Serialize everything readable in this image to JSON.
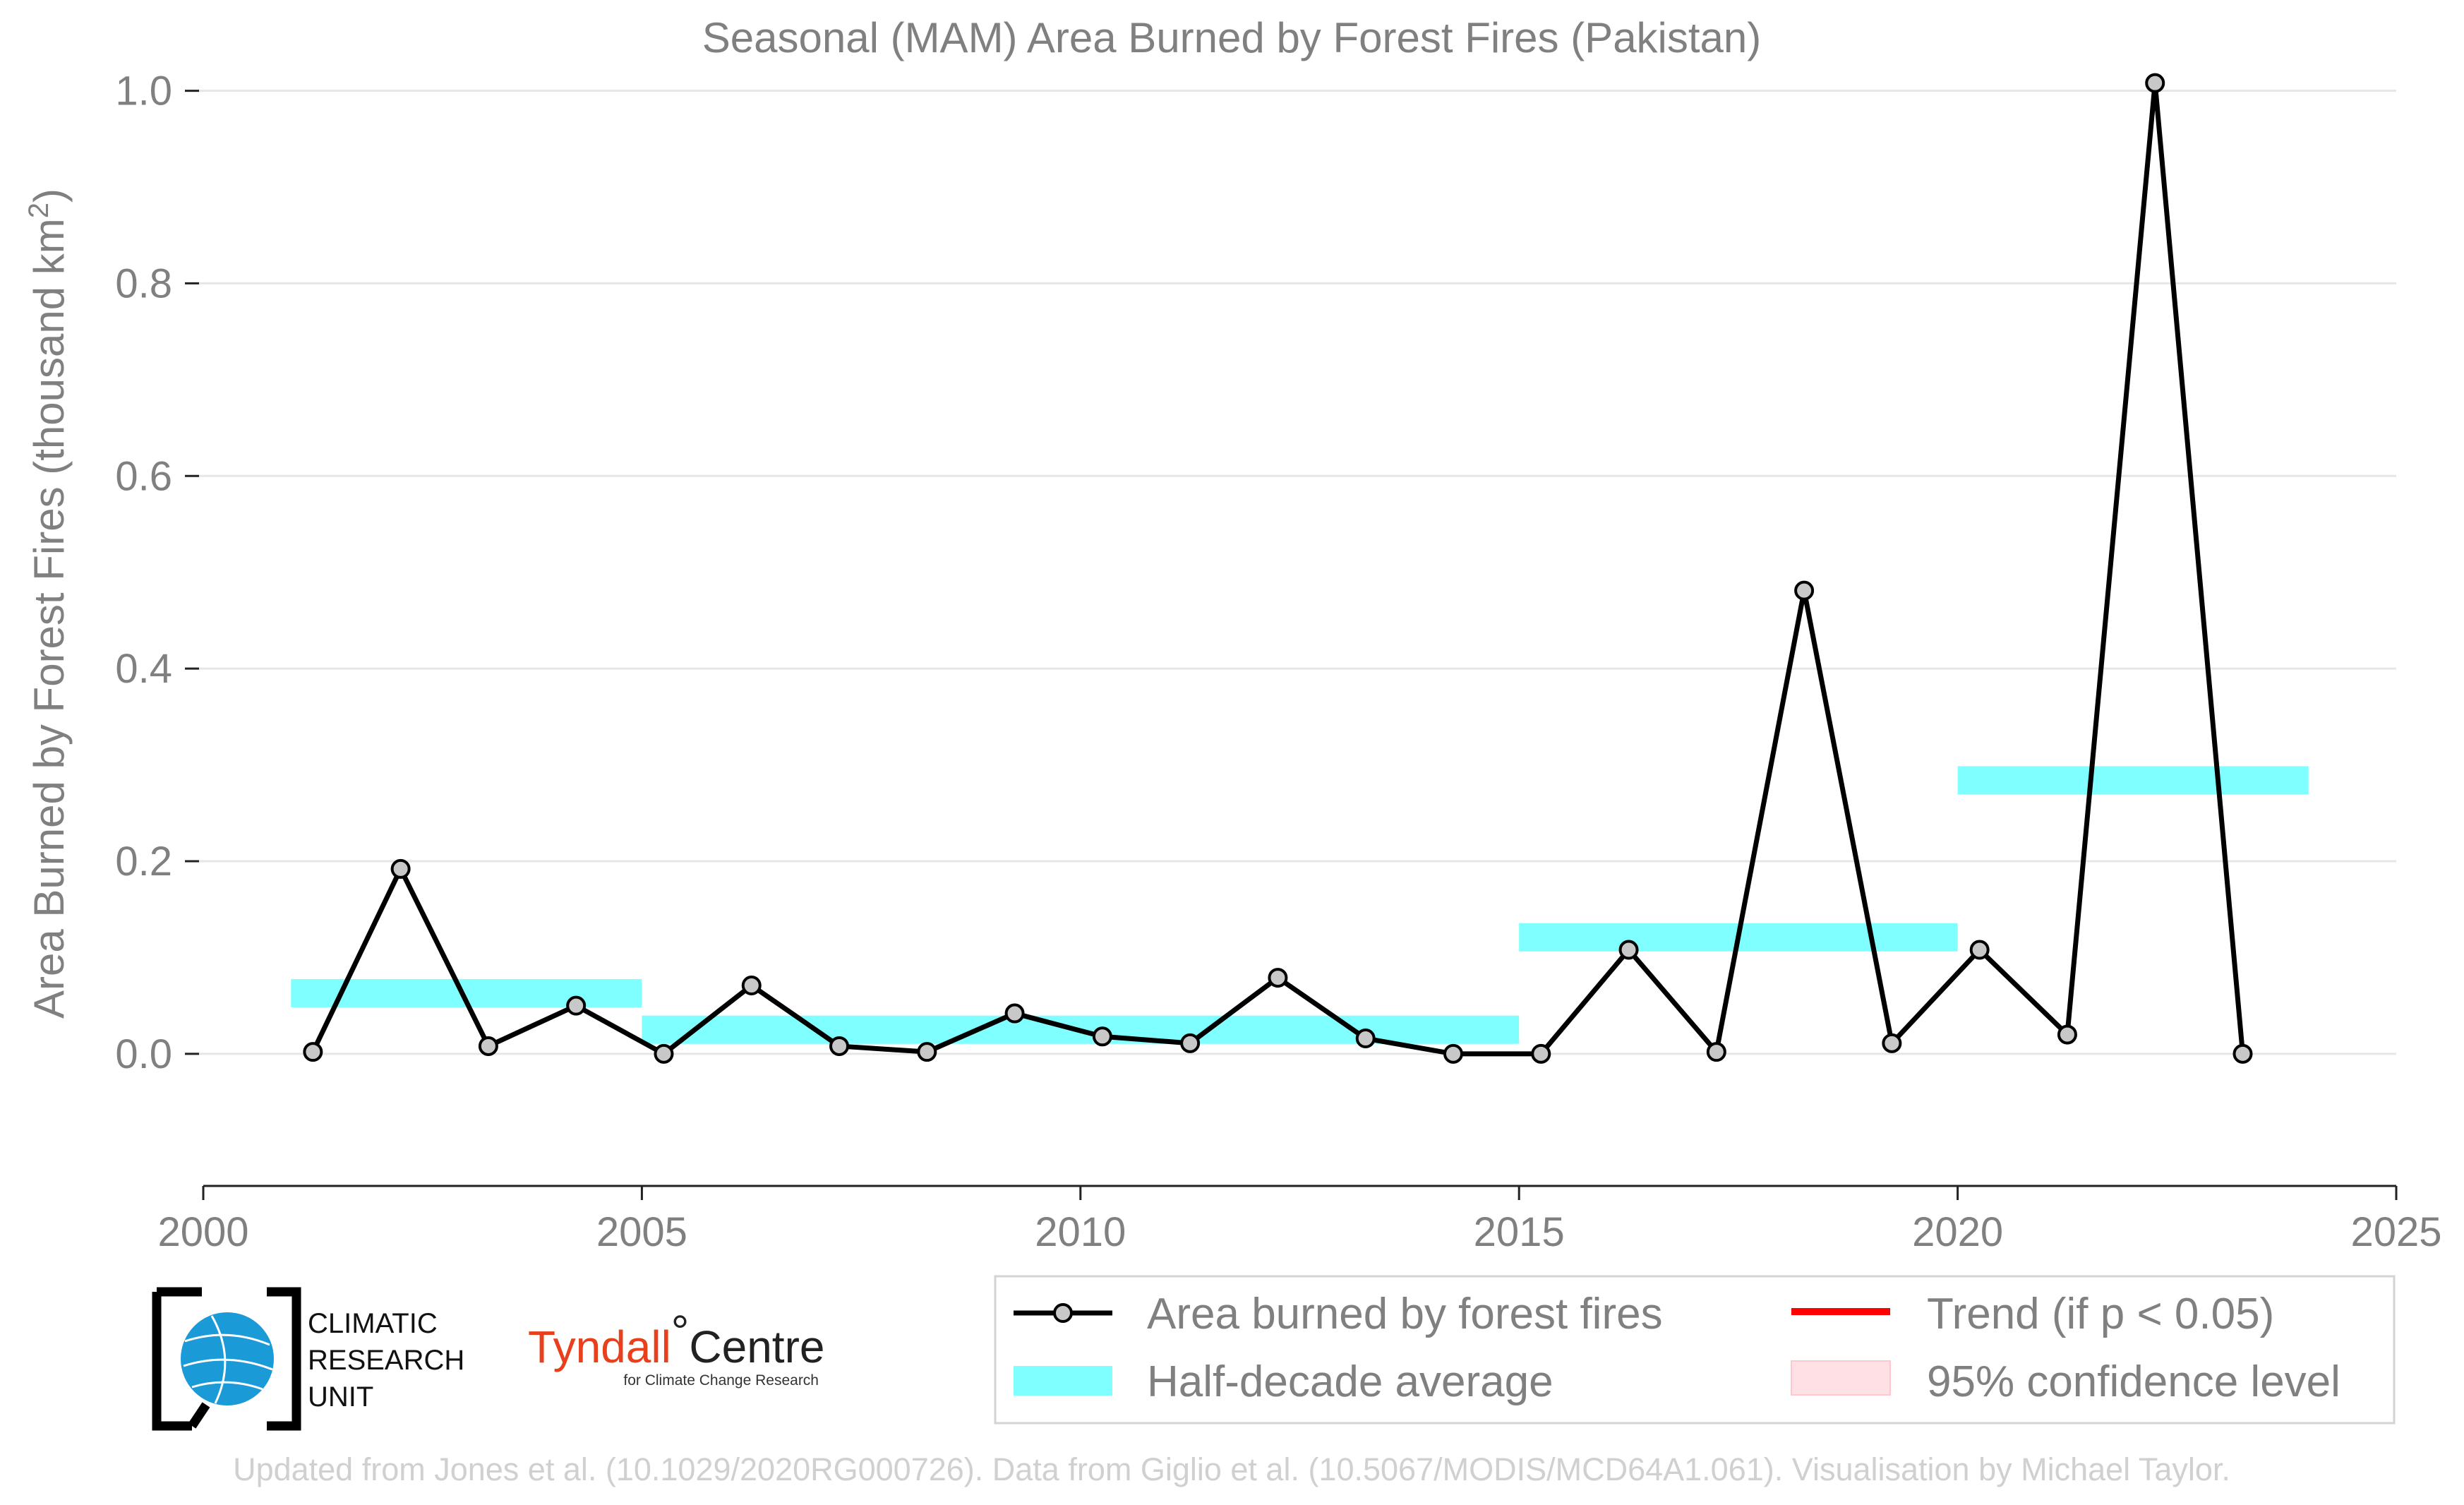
{
  "chart_data": {
    "type": "line",
    "title": "Seasonal (MAM) Area Burned by Forest Fires (Pakistan)",
    "xlabel": "",
    "ylabel_main": "Area Burned by Forest Fires (thousand km",
    "ylabel_sup": "2",
    "ylabel_close": ")",
    "xlim": [
      2000,
      2025
    ],
    "ylim": [
      -0.08,
      1.04
    ],
    "xticks": [
      "2000",
      "2005",
      "2010",
      "2015",
      "2020",
      "2025"
    ],
    "yticks": [
      "0.0",
      "0.2",
      "0.4",
      "0.6",
      "0.8",
      "1.0"
    ],
    "grid": true,
    "legend_position": "bottom-right",
    "series": [
      {
        "name": "Area burned by forest fires",
        "color": "#000000",
        "marker_color": "#c8c8c8",
        "x": [
          2001.25,
          2002.25,
          2003.25,
          2004.25,
          2005.25,
          2006.25,
          2007.25,
          2008.25,
          2009.25,
          2010.25,
          2011.25,
          2012.25,
          2013.25,
          2014.25,
          2015.25,
          2016.25,
          2017.25,
          2018.25,
          2019.25,
          2020.25,
          2021.25,
          2022.25,
          2023.25
        ],
        "y": [
          0.002,
          0.192,
          0.008,
          0.05,
          0.0,
          0.071,
          0.008,
          0.002,
          0.042,
          0.018,
          0.011,
          0.079,
          0.016,
          0.0,
          0.0,
          0.108,
          0.002,
          0.481,
          0.011,
          0.108,
          0.02,
          1.008,
          0.0
        ]
      }
    ],
    "half_decade_average": {
      "name": "Half-decade average",
      "color": "#7fffff",
      "segments": [
        {
          "x0": 2001,
          "x1": 2005,
          "y": 0.063
        },
        {
          "x0": 2005,
          "x1": 2015,
          "y": 0.025
        },
        {
          "x0": 2015,
          "x1": 2020,
          "y": 0.121
        },
        {
          "x0": 2020,
          "x1": 2024,
          "y": 0.284
        }
      ]
    },
    "trend": {
      "name": "Trend (if p < 0.05)",
      "color": "#ff0000"
    },
    "confidence": {
      "name": "95% confidence level",
      "color": "#ffe0e4"
    }
  },
  "logos": {
    "cru_lines": [
      "CLIMATIC",
      "RESEARCH",
      "UNIT"
    ],
    "tyndall_main": "Tyndall",
    "tyndall_degree": "°",
    "tyndall_centre": "Centre",
    "tyndall_sub": "for Climate Change Research"
  },
  "credit": "Updated from Jones et al. (10.1029/2020RG000726). Data from Giglio et al. (10.5067/MODIS/MCD64A1.061). Visualisation by Michael Taylor."
}
